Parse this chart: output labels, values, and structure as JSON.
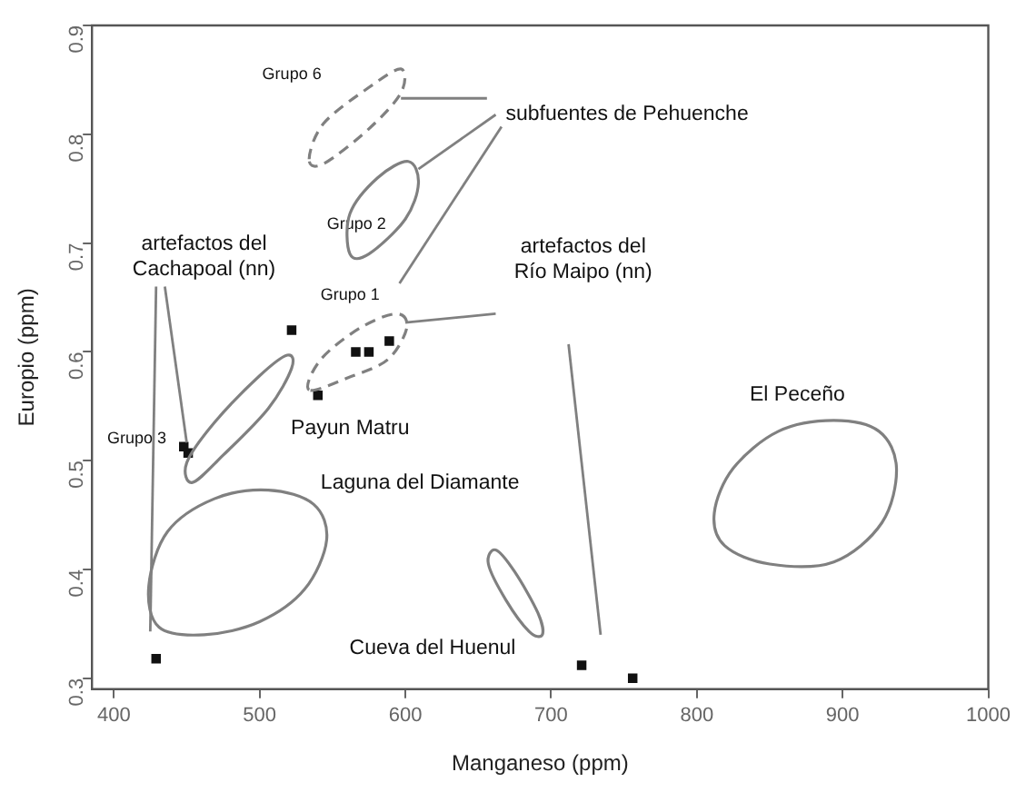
{
  "chart_data": {
    "type": "scatter",
    "xlabel": "Manganeso (ppm)",
    "ylabel": "Europio (ppm)",
    "xlim": [
      385,
      1000
    ],
    "xticks": [
      400,
      500,
      600,
      700,
      800,
      900,
      1000
    ],
    "ylim": [
      0.29,
      0.9
    ],
    "yticks": [
      0.3,
      0.4,
      0.5,
      0.6,
      0.7,
      0.8,
      0.9
    ],
    "grid": false,
    "legend": false,
    "marker": "square",
    "series": [
      {
        "color": "#111111",
        "x": [
          429,
          721,
          756,
          448,
          451,
          522,
          566,
          575,
          589,
          540
        ],
        "values": [
          0.318,
          0.312,
          0.3,
          0.513,
          0.507,
          0.62,
          0.6,
          0.6,
          0.61,
          0.56
        ]
      }
    ],
    "annotations": [
      "Grupo 6",
      "subfuentes de Pehuenche",
      "Grupo 2",
      {
        "text": "artefactos del\nCachapoal (nn)",
        "x": 450,
        "y": 0.51
      },
      "Grupo 1",
      "artefactos del\nRío Maipo (nn)",
      "Payun Matru",
      "Laguna del Diamante",
      "El Peceño",
      "Grupo 3",
      "Cueva del Huenul"
    ]
  }
}
